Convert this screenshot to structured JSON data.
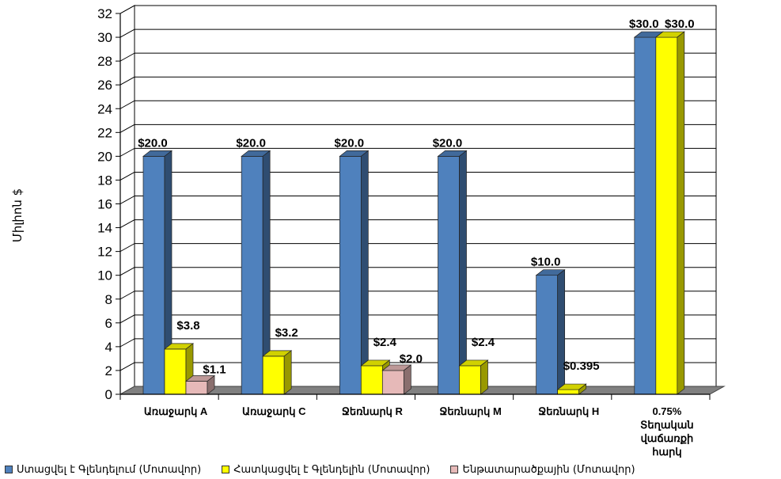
{
  "chart_data": {
    "type": "bar",
    "variant": "3d-clustered",
    "ylabel": "Միլիոն $",
    "xlabel": "",
    "title": "",
    "ylim": [
      0,
      32
    ],
    "y_ticks": [
      0,
      2,
      4,
      6,
      8,
      10,
      12,
      14,
      16,
      18,
      20,
      22,
      24,
      26,
      28,
      30,
      32
    ],
    "grid": true,
    "legend_position": "bottom",
    "categories": [
      [
        "Առաջարկ A"
      ],
      [
        "Առաջարկ C"
      ],
      [
        "Ջեռնարկ R"
      ],
      [
        "Ջեռնարկ M"
      ],
      [
        "Ջեռնարկ H"
      ],
      [
        "0.75%",
        "Տեղական",
        "վաճառքի",
        "հարկ"
      ]
    ],
    "series": [
      {
        "name": "Ստացվել է Գլենդելում (Մոտավոր)",
        "color": "#4F81BD",
        "values": [
          20.0,
          20.0,
          20.0,
          20.0,
          10.0,
          30.0
        ],
        "labels": [
          "$20.0",
          "$20.0",
          "$20.0",
          "$20.0",
          "$10.0",
          "$30.0"
        ]
      },
      {
        "name": "Հատկացվել է Գլենդելին (Մոտավոր)",
        "color": "#FFFF00",
        "values": [
          3.8,
          3.2,
          2.4,
          2.4,
          0.395,
          30.0
        ],
        "labels": [
          "$3.8",
          "$3.2",
          "$2.4",
          "$2.4",
          "$0.395",
          "$30.0"
        ]
      },
      {
        "name": "Ենթատարածքային (Մոտավոր)",
        "color": "#E6B9B8",
        "values": [
          1.1,
          null,
          2.0,
          null,
          null,
          null
        ],
        "labels": [
          "$1.1",
          "",
          "$2.0",
          "",
          "",
          ""
        ]
      }
    ]
  }
}
